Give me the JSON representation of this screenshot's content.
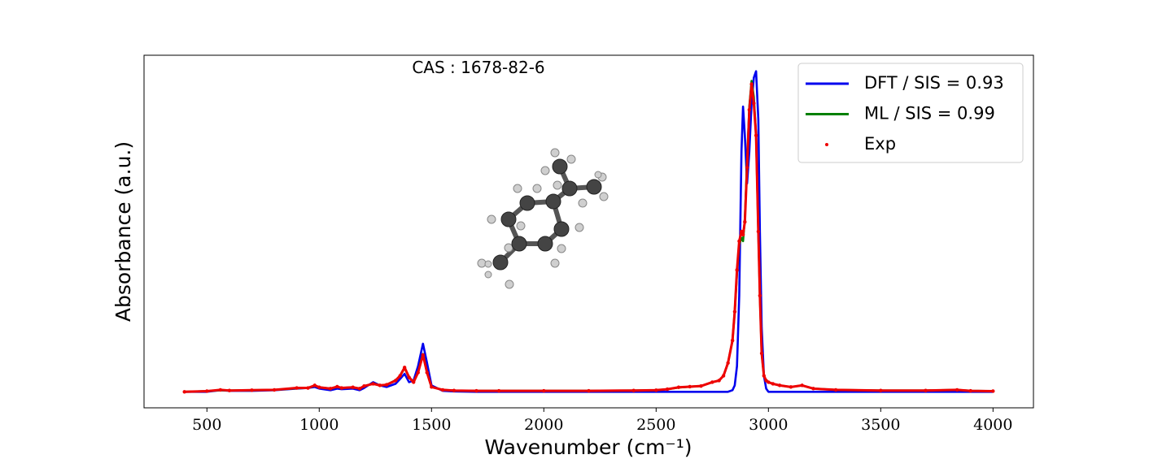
{
  "chart_data": {
    "type": "line",
    "annotation": "CAS : 1678-82-6",
    "xlabel": "Wavenumber (cm⁻¹)",
    "ylabel": "Absorbance (a.u.)",
    "xlim": [
      220,
      4180
    ],
    "ylim": [
      -0.05,
      1.05
    ],
    "xticks": [
      500,
      1000,
      1500,
      2000,
      2500,
      3000,
      3500,
      4000
    ],
    "legend": "upper right",
    "x": [
      400,
      500,
      560,
      600,
      700,
      800,
      900,
      950,
      980,
      1000,
      1050,
      1080,
      1100,
      1150,
      1180,
      1200,
      1240,
      1270,
      1300,
      1340,
      1360,
      1380,
      1400,
      1420,
      1440,
      1462,
      1480,
      1500,
      1550,
      1600,
      1700,
      1800,
      2000,
      2200,
      2400,
      2500,
      2550,
      2600,
      2650,
      2700,
      2750,
      2780,
      2800,
      2820,
      2840,
      2850,
      2860,
      2870,
      2880,
      2887,
      2895,
      2905,
      2915,
      2925,
      2935,
      2945,
      2955,
      2962,
      2970,
      2980,
      2990,
      3000,
      3020,
      3050,
      3100,
      3150,
      3200,
      3300,
      3500,
      3700,
      3840,
      3900,
      4000
    ],
    "series": [
      {
        "name": "DFT / SIS = 0.93",
        "color": "#0000ee",
        "marker": "line",
        "values": [
          0,
          0,
          0.005,
          0.003,
          0.003,
          0.005,
          0.01,
          0.012,
          0.015,
          0.01,
          0.005,
          0.01,
          0.008,
          0.01,
          0.005,
          0.012,
          0.03,
          0.02,
          0.015,
          0.025,
          0.04,
          0.056,
          0.03,
          0.035,
          0.08,
          0.15,
          0.09,
          0.02,
          0.003,
          0.001,
          0,
          0,
          0,
          0,
          0,
          0,
          0,
          0,
          0,
          0,
          0,
          0,
          0,
          0,
          0.005,
          0.02,
          0.08,
          0.3,
          0.75,
          0.89,
          0.8,
          0.65,
          0.75,
          0.9,
          0.98,
          1.0,
          0.85,
          0.5,
          0.2,
          0.05,
          0.01,
          0,
          0,
          0,
          0,
          0,
          0,
          0,
          0,
          0,
          0,
          0,
          0
        ]
      },
      {
        "name": "ML / SIS = 0.99",
        "color": "#008000",
        "marker": "line",
        "values": [
          0,
          0.002,
          0.005,
          0.004,
          0.005,
          0.006,
          0.011,
          0.012,
          0.019,
          0.014,
          0.01,
          0.015,
          0.012,
          0.014,
          0.01,
          0.017,
          0.026,
          0.02,
          0.022,
          0.036,
          0.05,
          0.074,
          0.046,
          0.03,
          0.062,
          0.118,
          0.06,
          0.015,
          0.006,
          0.004,
          0.003,
          0.003,
          0.003,
          0.003,
          0.004,
          0.005,
          0.008,
          0.013,
          0.016,
          0.018,
          0.03,
          0.035,
          0.05,
          0.09,
          0.16,
          0.25,
          0.37,
          0.46,
          0.48,
          0.47,
          0.54,
          0.72,
          0.89,
          0.97,
          0.92,
          0.8,
          0.5,
          0.3,
          0.12,
          0.05,
          0.035,
          0.03,
          0.025,
          0.02,
          0.015,
          0.02,
          0.01,
          0.006,
          0.004,
          0.004,
          0.006,
          0.003,
          0.002
        ]
      },
      {
        "name": "Exp",
        "color": "#ee0000",
        "marker": "dot",
        "values": [
          0,
          0.002,
          0.006,
          0.004,
          0.005,
          0.006,
          0.012,
          0.012,
          0.02,
          0.014,
          0.01,
          0.016,
          0.012,
          0.014,
          0.01,
          0.018,
          0.025,
          0.02,
          0.022,
          0.035,
          0.05,
          0.076,
          0.045,
          0.03,
          0.06,
          0.115,
          0.06,
          0.015,
          0.006,
          0.004,
          0.003,
          0.003,
          0.003,
          0.003,
          0.004,
          0.005,
          0.008,
          0.014,
          0.016,
          0.018,
          0.03,
          0.035,
          0.05,
          0.09,
          0.16,
          0.25,
          0.38,
          0.47,
          0.5,
          0.49,
          0.53,
          0.7,
          0.88,
          0.96,
          0.9,
          0.8,
          0.5,
          0.3,
          0.12,
          0.05,
          0.035,
          0.03,
          0.025,
          0.02,
          0.015,
          0.02,
          0.01,
          0.006,
          0.004,
          0.004,
          0.006,
          0.003,
          0.002
        ]
      }
    ]
  }
}
